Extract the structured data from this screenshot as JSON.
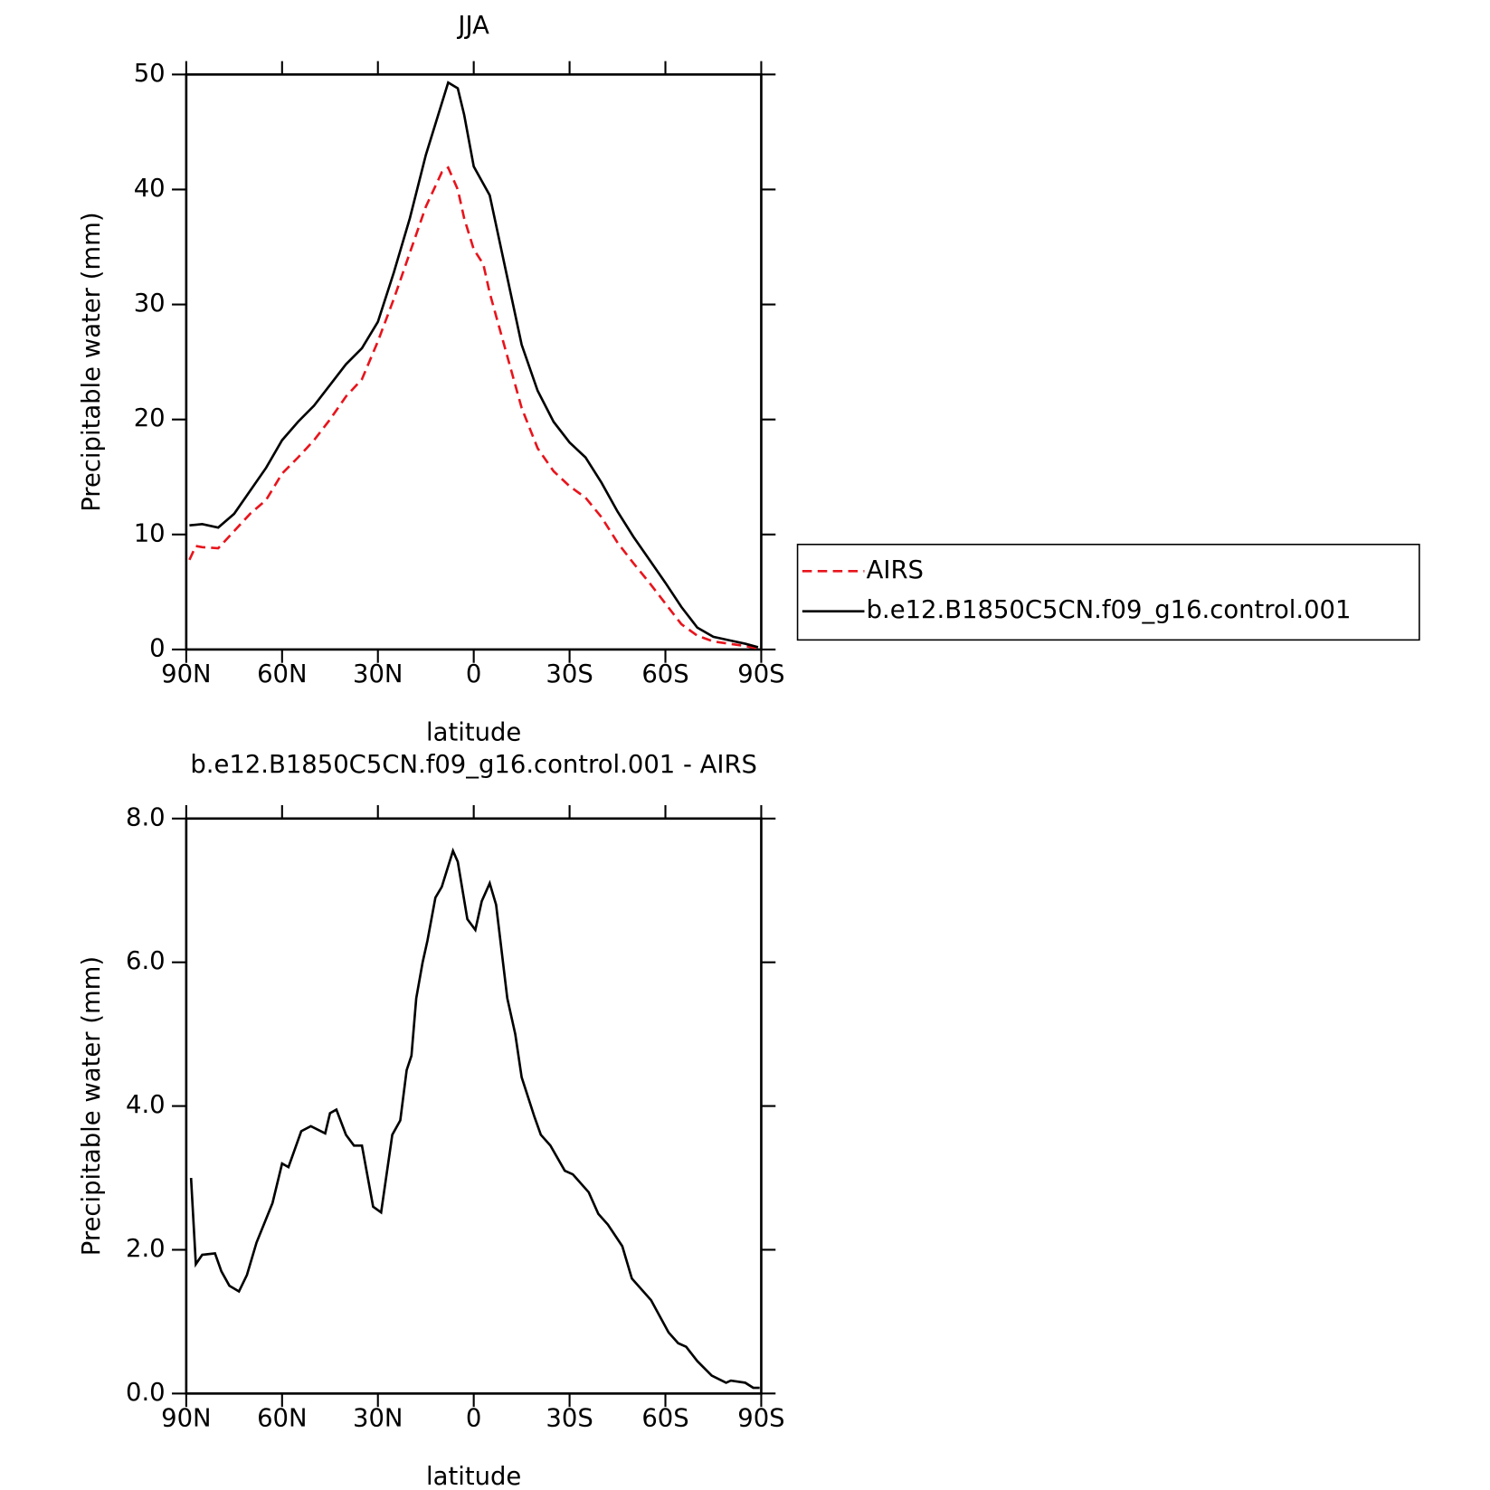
{
  "chart_data": [
    {
      "type": "line",
      "title": "JJA",
      "xlabel": "latitude",
      "ylabel": "Precipitable water (mm)",
      "x": [
        89,
        87,
        85,
        80,
        75,
        70,
        65,
        60,
        55,
        50,
        45,
        40,
        35,
        30,
        25,
        20,
        15,
        10,
        8,
        5,
        3,
        0,
        -3,
        -5,
        -10,
        -15,
        -20,
        -25,
        -30,
        -35,
        -40,
        -45,
        -50,
        -55,
        -60,
        -65,
        -70,
        -75,
        -80,
        -85,
        -89
      ],
      "series": [
        {
          "name": "AIRS",
          "color": "#e8141c",
          "linestyle": "dashed",
          "values": [
            7.8,
            9.0,
            8.9,
            8.8,
            10.3,
            11.8,
            13.0,
            15.3,
            16.7,
            18.2,
            20.0,
            22.0,
            23.5,
            26.8,
            30.5,
            34.5,
            38.5,
            41.5,
            41.9,
            40.0,
            37.5,
            34.8,
            33.5,
            31.0,
            26.0,
            21.0,
            17.5,
            15.5,
            14.2,
            13.2,
            11.5,
            9.3,
            7.5,
            5.8,
            4.0,
            2.2,
            1.2,
            0.7,
            0.5,
            0.3,
            0.1
          ]
        },
        {
          "name": "b.e12.B1850C5CN.f09_g16.control.001",
          "color": "#000000",
          "linestyle": "solid",
          "values": [
            10.8,
            10.85,
            10.9,
            10.6,
            11.8,
            13.8,
            15.8,
            18.2,
            19.8,
            21.2,
            23.0,
            24.8,
            26.2,
            28.5,
            32.8,
            37.5,
            43.0,
            47.5,
            49.3,
            48.8,
            46.5,
            42.0,
            40.5,
            39.5,
            33.0,
            26.5,
            22.5,
            19.8,
            18.0,
            16.7,
            14.5,
            12.0,
            9.8,
            7.8,
            5.8,
            3.7,
            1.9,
            1.1,
            0.8,
            0.5,
            0.2
          ]
        }
      ],
      "xlim": [
        90,
        -90
      ],
      "xticks": [
        {
          "value": 90,
          "label": "90N"
        },
        {
          "value": 60,
          "label": "60N"
        },
        {
          "value": 30,
          "label": "30N"
        },
        0,
        {
          "value": -30,
          "label": "30S"
        },
        {
          "value": -60,
          "label": "60S"
        },
        {
          "value": -90,
          "label": "90S"
        }
      ],
      "ylim": [
        0,
        50
      ],
      "yticks": [
        0,
        10,
        20,
        30,
        40,
        50
      ],
      "legend": "right"
    },
    {
      "type": "line",
      "title": "b.e12.B1850C5CN.f09_g16.control.001 - AIRS",
      "xlabel": "latitude",
      "ylabel": "Precipitable water (mm)",
      "x": [
        88.5,
        87,
        85,
        81,
        79,
        76.5,
        73.5,
        71,
        68,
        63,
        60,
        58,
        54,
        51,
        46.5,
        45,
        43,
        40,
        37.5,
        35,
        31.5,
        29,
        25.5,
        23,
        21,
        19.5,
        18,
        16,
        14.5,
        12,
        10,
        6.5,
        5,
        2,
        -0.5,
        -2.5,
        -5,
        -7,
        -10.5,
        -13,
        -15,
        -19,
        -21,
        -24,
        -28.5,
        -31,
        -36,
        -39,
        -42,
        -46.5,
        -49.5,
        -55.5,
        -61,
        -64,
        -66.5,
        -70,
        -74.5,
        -79,
        -80.5,
        -85,
        -87.5,
        -89.5
      ],
      "values": [
        3.0,
        1.8,
        1.93,
        1.95,
        1.7,
        1.5,
        1.42,
        1.65,
        2.1,
        2.65,
        3.2,
        3.15,
        3.65,
        3.72,
        3.62,
        3.9,
        3.95,
        3.6,
        3.45,
        3.45,
        2.6,
        2.52,
        3.6,
        3.8,
        4.5,
        4.7,
        5.5,
        6.0,
        6.3,
        6.9,
        7.05,
        7.55,
        7.4,
        6.6,
        6.45,
        6.85,
        7.1,
        6.8,
        5.5,
        5.0,
        4.4,
        3.85,
        3.6,
        3.45,
        3.1,
        3.05,
        2.8,
        2.5,
        2.35,
        2.05,
        1.6,
        1.3,
        0.85,
        0.7,
        0.65,
        0.45,
        0.25,
        0.15,
        0.18,
        0.15,
        0.08,
        0.08
      ],
      "color": "#000000",
      "xlim": [
        90,
        -90
      ],
      "xticks": [
        {
          "value": 90,
          "label": "90N"
        },
        {
          "value": 60,
          "label": "60N"
        },
        {
          "value": 30,
          "label": "30N"
        },
        0,
        {
          "value": -30,
          "label": "30S"
        },
        {
          "value": -60,
          "label": "60S"
        },
        {
          "value": -90,
          "label": "90S"
        }
      ],
      "ylim": [
        0,
        8
      ],
      "yticks": [
        {
          "value": 0,
          "label": "0.0"
        },
        {
          "value": 2,
          "label": "2.0"
        },
        {
          "value": 4,
          "label": "4.0"
        },
        {
          "value": 6,
          "label": "6.0"
        },
        {
          "value": 8,
          "label": "8.0"
        }
      ]
    }
  ]
}
